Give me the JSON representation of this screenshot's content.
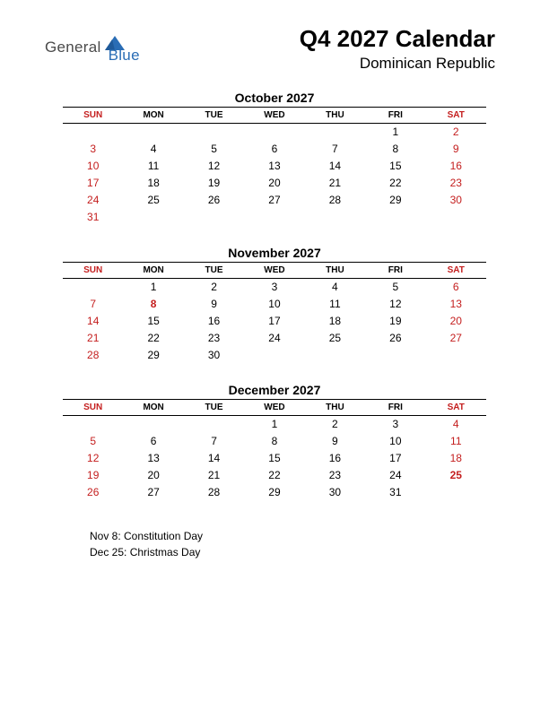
{
  "logo": {
    "general": "General",
    "blue": "Blue"
  },
  "title": "Q4 2027 Calendar",
  "subtitle": "Dominican Republic",
  "colors": {
    "weekend": "#c41e1e",
    "text": "#000000",
    "logo_blue": "#2a6db5",
    "logo_gray": "#4a4a4a",
    "background": "#ffffff"
  },
  "day_headers": [
    "SUN",
    "MON",
    "TUE",
    "WED",
    "THU",
    "FRI",
    "SAT"
  ],
  "months": [
    {
      "name": "October 2027",
      "weeks": [
        [
          "",
          "",
          "",
          "",
          "",
          "1",
          "2"
        ],
        [
          "3",
          "4",
          "5",
          "6",
          "7",
          "8",
          "9"
        ],
        [
          "10",
          "11",
          "12",
          "13",
          "14",
          "15",
          "16"
        ],
        [
          "17",
          "18",
          "19",
          "20",
          "21",
          "22",
          "23"
        ],
        [
          "24",
          "25",
          "26",
          "27",
          "28",
          "29",
          "30"
        ],
        [
          "31",
          "",
          "",
          "",
          "",
          "",
          ""
        ]
      ],
      "holidays_idx": []
    },
    {
      "name": "November 2027",
      "weeks": [
        [
          "",
          "1",
          "2",
          "3",
          "4",
          "5",
          "6"
        ],
        [
          "7",
          "8",
          "9",
          "10",
          "11",
          "12",
          "13"
        ],
        [
          "14",
          "15",
          "16",
          "17",
          "18",
          "19",
          "20"
        ],
        [
          "21",
          "22",
          "23",
          "24",
          "25",
          "26",
          "27"
        ],
        [
          "28",
          "29",
          "30",
          "",
          "",
          "",
          ""
        ]
      ],
      "holidays_idx": [
        [
          1,
          1
        ]
      ]
    },
    {
      "name": "December 2027",
      "weeks": [
        [
          "",
          "",
          "",
          "1",
          "2",
          "3",
          "4"
        ],
        [
          "5",
          "6",
          "7",
          "8",
          "9",
          "10",
          "11"
        ],
        [
          "12",
          "13",
          "14",
          "15",
          "16",
          "17",
          "18"
        ],
        [
          "19",
          "20",
          "21",
          "22",
          "23",
          "24",
          "25"
        ],
        [
          "26",
          "27",
          "28",
          "29",
          "30",
          "31",
          ""
        ]
      ],
      "holidays_idx": [
        [
          3,
          6
        ]
      ]
    }
  ],
  "holidays": [
    "Nov 8: Constitution Day",
    "Dec 25: Christmas Day"
  ]
}
